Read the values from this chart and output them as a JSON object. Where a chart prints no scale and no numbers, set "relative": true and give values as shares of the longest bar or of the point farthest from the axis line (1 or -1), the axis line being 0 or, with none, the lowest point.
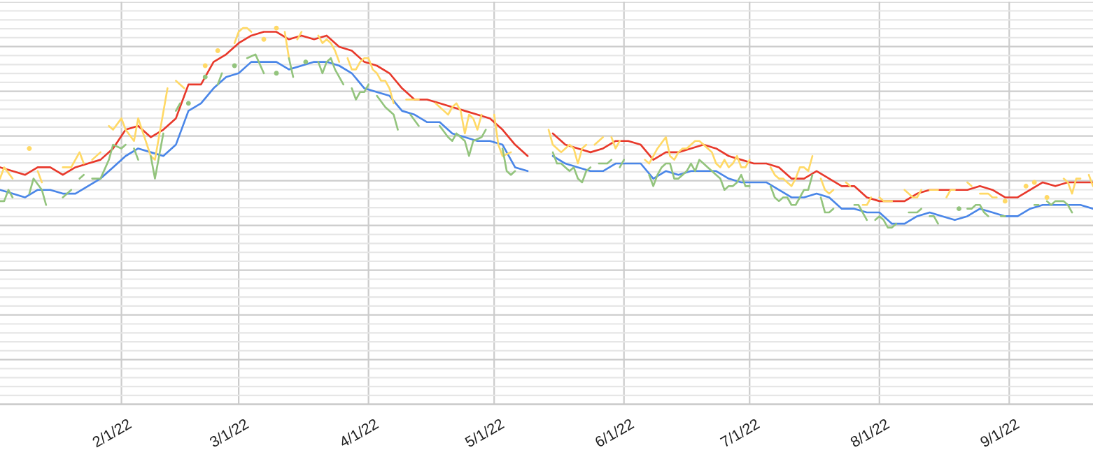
{
  "chart_data": {
    "type": "line",
    "relative": true,
    "grid": true,
    "tick_labels": "x",
    "xlim": [
      "2022-01-03",
      "2022-09-21"
    ],
    "xticks": [
      {
        "value": "2022-02-01",
        "label": "2/1/22"
      },
      {
        "value": "2022-03-01",
        "label": "3/1/22"
      },
      {
        "value": "2022-04-01",
        "label": "4/1/22"
      },
      {
        "value": "2022-05-01",
        "label": "5/1/22"
      },
      {
        "value": "2022-06-01",
        "label": "6/1/22"
      },
      {
        "value": "2022-07-01",
        "label": "7/1/22"
      },
      {
        "value": "2022-08-01",
        "label": "8/1/22"
      },
      {
        "value": "2022-09-01",
        "label": "9/1/22"
      }
    ],
    "x": [
      "2022-01-03",
      "2022-01-06",
      "2022-01-09",
      "2022-01-12",
      "2022-01-15",
      "2022-01-18",
      "2022-01-21",
      "2022-01-24",
      "2022-01-27",
      "2022-01-30",
      "2022-02-02",
      "2022-02-05",
      "2022-02-08",
      "2022-02-11",
      "2022-02-14",
      "2022-02-17",
      "2022-02-20",
      "2022-02-23",
      "2022-02-26",
      "2022-03-01",
      "2022-03-04",
      "2022-03-07",
      "2022-03-10",
      "2022-03-13",
      "2022-03-16",
      "2022-03-19",
      "2022-03-22",
      "2022-03-25",
      "2022-03-28",
      "2022-03-31",
      "2022-04-03",
      "2022-04-06",
      "2022-04-09",
      "2022-04-12",
      "2022-04-15",
      "2022-04-18",
      "2022-04-21",
      "2022-04-24",
      "2022-04-27",
      "2022-04-30",
      "2022-05-03",
      "2022-05-06",
      "2022-05-09",
      "2022-05-12",
      "2022-05-15",
      "2022-05-18",
      "2022-05-21",
      "2022-05-24",
      "2022-05-27",
      "2022-05-30",
      "2022-06-02",
      "2022-06-05",
      "2022-06-08",
      "2022-06-11",
      "2022-06-14",
      "2022-06-17",
      "2022-06-20",
      "2022-06-23",
      "2022-06-26",
      "2022-06-29",
      "2022-07-02",
      "2022-07-05",
      "2022-07-08",
      "2022-07-11",
      "2022-07-14",
      "2022-07-17",
      "2022-07-20",
      "2022-07-23",
      "2022-07-26",
      "2022-07-29",
      "2022-08-01",
      "2022-08-04",
      "2022-08-07",
      "2022-08-10",
      "2022-08-13",
      "2022-08-16",
      "2022-08-19",
      "2022-08-22",
      "2022-08-25",
      "2022-08-28",
      "2022-08-31",
      "2022-09-03",
      "2022-09-06",
      "2022-09-09",
      "2022-09-12",
      "2022-09-15",
      "2022-09-18",
      "2022-09-21"
    ],
    "series": [
      {
        "color": "#e8392b",
        "values": [
          0.63,
          0.62,
          0.61,
          0.63,
          0.63,
          0.61,
          0.63,
          0.64,
          0.65,
          0.68,
          0.73,
          0.74,
          0.71,
          0.73,
          0.76,
          0.85,
          0.85,
          0.91,
          0.93,
          0.96,
          0.98,
          0.99,
          0.99,
          0.97,
          0.98,
          0.97,
          0.98,
          0.95,
          0.94,
          0.91,
          0.9,
          0.88,
          0.84,
          0.81,
          0.81,
          0.8,
          0.79,
          0.78,
          0.77,
          0.76,
          0.73,
          0.69,
          0.66,
          null,
          0.72,
          0.69,
          0.68,
          0.67,
          0.68,
          0.7,
          0.7,
          0.69,
          0.65,
          0.67,
          0.67,
          0.68,
          0.69,
          0.68,
          0.66,
          0.65,
          0.64,
          0.64,
          0.63,
          0.6,
          0.6,
          0.62,
          0.6,
          0.58,
          0.58,
          0.55,
          0.54,
          0.54,
          0.54,
          0.56,
          0.57,
          0.57,
          0.57,
          0.57,
          0.58,
          0.57,
          0.55,
          0.55,
          0.57,
          0.59,
          0.58,
          0.59,
          0.59,
          0.59
        ]
      },
      {
        "color": "#4a86e8",
        "values": [
          0.57,
          0.56,
          0.55,
          0.57,
          0.57,
          0.56,
          0.56,
          0.58,
          0.6,
          0.63,
          0.66,
          0.68,
          0.67,
          0.66,
          0.69,
          0.78,
          0.8,
          0.84,
          0.87,
          0.88,
          0.91,
          0.91,
          0.91,
          0.89,
          0.9,
          0.91,
          0.91,
          0.9,
          0.88,
          0.84,
          0.83,
          0.82,
          0.78,
          0.77,
          0.75,
          0.75,
          0.72,
          0.71,
          0.7,
          0.7,
          0.69,
          0.63,
          0.62,
          null,
          0.66,
          0.64,
          0.63,
          0.62,
          0.62,
          0.64,
          0.64,
          0.64,
          0.6,
          0.62,
          0.61,
          0.62,
          0.62,
          0.62,
          0.6,
          0.59,
          0.59,
          0.59,
          0.57,
          0.55,
          0.55,
          0.56,
          0.55,
          0.52,
          0.52,
          0.51,
          0.51,
          0.48,
          0.48,
          0.5,
          0.51,
          0.5,
          0.49,
          0.5,
          0.52,
          0.51,
          0.5,
          0.5,
          0.52,
          0.53,
          0.53,
          0.53,
          0.53,
          0.52
        ]
      },
      {
        "color": "#ffd966",
        "x": [
          "2022-01-03",
          "2022-01-04",
          "2022-01-06",
          "2022-01-08",
          "2022-01-10",
          "2022-01-11",
          "2022-01-12",
          "2022-01-13",
          "2022-01-15",
          "2022-01-18",
          "2022-01-20",
          "2022-01-22",
          "2022-01-23",
          "2022-01-24",
          "2022-01-25",
          "2022-01-27",
          "2022-01-28",
          "2022-01-29",
          "2022-01-30",
          "2022-02-01",
          "2022-02-02",
          "2022-02-04",
          "2022-02-05",
          "2022-02-08",
          "2022-02-09",
          "2022-02-12",
          "2022-02-13",
          "2022-02-14",
          "2022-02-16",
          "2022-02-18",
          "2022-02-21",
          "2022-02-22",
          "2022-02-24",
          "2022-02-26",
          "2022-02-28",
          "2022-03-01",
          "2022-03-02",
          "2022-03-03",
          "2022-03-04",
          "2022-03-05",
          "2022-03-07",
          "2022-03-08",
          "2022-03-10",
          "2022-03-11",
          "2022-03-12",
          "2022-03-13",
          "2022-03-14",
          "2022-03-15",
          "2022-03-16",
          "2022-03-18",
          "2022-03-20",
          "2022-03-21",
          "2022-03-22",
          "2022-03-23",
          "2022-03-24",
          "2022-03-25",
          "2022-03-26",
          "2022-03-27",
          "2022-03-28",
          "2022-03-29",
          "2022-03-30",
          "2022-03-31",
          "2022-04-01",
          "2022-04-02",
          "2022-04-03",
          "2022-04-04",
          "2022-04-05",
          "2022-04-06",
          "2022-04-07",
          "2022-04-08",
          "2022-04-10",
          "2022-04-12",
          "2022-04-13",
          "2022-04-15",
          "2022-04-17",
          "2022-04-19",
          "2022-04-20",
          "2022-04-21",
          "2022-04-22",
          "2022-04-23",
          "2022-04-24",
          "2022-04-25",
          "2022-04-26",
          "2022-04-27",
          "2022-04-28",
          "2022-04-29",
          "2022-05-01",
          "2022-05-02",
          "2022-05-03",
          "2022-05-05",
          "2022-05-10",
          "2022-05-14",
          "2022-05-15",
          "2022-05-16",
          "2022-05-17",
          "2022-05-18",
          "2022-05-19",
          "2022-05-20",
          "2022-05-21",
          "2022-05-22",
          "2022-05-23",
          "2022-05-24",
          "2022-05-25",
          "2022-05-27",
          "2022-05-28",
          "2022-05-29",
          "2022-05-30",
          "2022-05-31",
          "2022-06-03",
          "2022-06-06",
          "2022-06-07",
          "2022-06-09",
          "2022-06-11",
          "2022-06-12",
          "2022-06-13",
          "2022-06-14",
          "2022-06-15",
          "2022-06-16",
          "2022-06-17",
          "2022-06-18",
          "2022-06-19",
          "2022-06-20",
          "2022-06-21",
          "2022-06-22",
          "2022-06-23",
          "2022-06-24",
          "2022-06-25",
          "2022-06-26",
          "2022-06-27",
          "2022-06-28",
          "2022-06-29",
          "2022-06-30",
          "2022-07-01",
          "2022-07-03",
          "2022-07-06",
          "2022-07-07",
          "2022-07-08",
          "2022-07-09",
          "2022-07-10",
          "2022-07-11",
          "2022-07-12",
          "2022-07-13",
          "2022-07-14",
          "2022-07-15",
          "2022-07-16",
          "2022-07-17",
          "2022-07-18",
          "2022-07-19",
          "2022-07-20",
          "2022-07-21",
          "2022-07-22",
          "2022-07-24",
          "2022-07-25",
          "2022-07-26",
          "2022-07-28",
          "2022-07-29",
          "2022-07-30",
          "2022-07-31",
          "2022-08-01",
          "2022-08-02",
          "2022-08-04",
          "2022-08-06",
          "2022-08-07",
          "2022-08-08",
          "2022-08-09",
          "2022-08-10",
          "2022-08-11",
          "2022-08-12",
          "2022-08-13",
          "2022-08-15",
          "2022-08-16",
          "2022-08-17",
          "2022-08-18",
          "2022-08-19",
          "2022-08-20",
          "2022-08-22",
          "2022-08-23",
          "2022-08-24",
          "2022-08-25",
          "2022-08-27",
          "2022-08-28",
          "2022-08-29",
          "2022-08-30",
          "2022-08-31",
          "2022-09-02",
          "2022-09-05",
          "2022-09-06",
          "2022-09-07",
          "2022-09-08",
          "2022-09-10",
          "2022-09-12",
          "2022-09-14",
          "2022-09-15",
          "2022-09-16",
          "2022-09-17",
          "2022-09-18",
          "2022-09-19",
          "2022-09-20",
          "2022-09-21"
        ],
        "values": [
          0.6,
          0.63,
          0.6,
          null,
          0.68,
          null,
          0.62,
          0.59,
          null,
          0.63,
          0.63,
          0.67,
          0.64,
          null,
          0.65,
          0.67,
          null,
          0.74,
          0.73,
          0.76,
          0.73,
          0.7,
          0.76,
          0.66,
          0.65,
          0.84,
          null,
          0.86,
          0.84,
          null,
          0.9,
          null,
          0.94,
          null,
          0.96,
          0.99,
          1.0,
          1.0,
          0.99,
          null,
          0.97,
          null,
          1.0,
          null,
          0.99,
          0.92,
          null,
          0.97,
          0.99,
          null,
          0.98,
          0.96,
          0.97,
          0.96,
          0.94,
          0.91,
          null,
          0.92,
          0.89,
          0.89,
          0.91,
          0.92,
          0.92,
          0.89,
          0.88,
          0.86,
          0.86,
          0.84,
          0.8,
          null,
          0.81,
          0.81,
          0.81,
          null,
          0.8,
          0.78,
          0.77,
          0.79,
          0.8,
          0.78,
          0.72,
          0.77,
          0.76,
          0.73,
          0.77,
          null,
          0.77,
          0.69,
          0.66,
          0.67,
          null,
          0.73,
          0.69,
          0.68,
          0.67,
          0.68,
          0.69,
          0.68,
          0.64,
          0.68,
          0.69,
          null,
          0.69,
          0.71,
          null,
          0.71,
          0.68,
          0.7,
          null,
          0.65,
          0.64,
          0.68,
          0.71,
          0.66,
          0.65,
          0.67,
          0.68,
          0.68,
          0.69,
          0.7,
          0.7,
          0.69,
          0.68,
          0.67,
          0.64,
          0.63,
          0.65,
          0.63,
          0.64,
          0.66,
          0.63,
          0.63,
          0.65,
          null,
          0.63,
          0.61,
          0.6,
          0.6,
          0.59,
          0.58,
          0.6,
          0.63,
          0.63,
          0.62,
          0.66,
          null,
          0.6,
          0.57,
          0.56,
          0.57,
          null,
          0.59,
          0.58,
          null,
          0.53,
          0.53,
          0.55,
          null,
          0.55,
          0.54,
          0.54,
          null,
          0.57,
          0.56,
          0.55,
          0.55,
          0.57,
          null,
          0.57,
          0.57,
          null,
          0.55,
          0.57,
          0.57,
          null,
          0.59,
          0.58,
          null,
          0.56,
          0.56,
          0.55,
          0.55,
          null,
          0.54,
          null,
          0.58,
          null,
          0.59,
          null,
          0.55,
          null,
          0.6,
          0.59,
          0.56,
          0.6,
          0.6,
          null,
          0.61,
          0.58
        ]
      },
      {
        "color": "#93c47d",
        "x": [
          "2022-01-03",
          "2022-01-04",
          "2022-01-05",
          "2022-01-06",
          "2022-01-08",
          "2022-01-10",
          "2022-01-11",
          "2022-01-13",
          "2022-01-14",
          "2022-01-16",
          "2022-01-18",
          "2022-01-20",
          "2022-01-21",
          "2022-01-22",
          "2022-01-23",
          "2022-01-24",
          "2022-01-25",
          "2022-01-27",
          "2022-01-29",
          "2022-01-30",
          "2022-02-01",
          "2022-02-02",
          "2022-02-03",
          "2022-02-04",
          "2022-02-05",
          "2022-02-06",
          "2022-02-08",
          "2022-02-09",
          "2022-02-11",
          "2022-02-12",
          "2022-02-14",
          "2022-02-15",
          "2022-02-16",
          "2022-02-17",
          "2022-02-19",
          "2022-02-21",
          "2022-02-22",
          "2022-02-24",
          "2022-02-25",
          "2022-02-26",
          "2022-02-28",
          "2022-03-01",
          "2022-03-03",
          "2022-03-05",
          "2022-03-07",
          "2022-03-08",
          "2022-03-10",
          "2022-03-11",
          "2022-03-13",
          "2022-03-14",
          "2022-03-15",
          "2022-03-17",
          "2022-03-18",
          "2022-03-20",
          "2022-03-21",
          "2022-03-22",
          "2022-03-23",
          "2022-03-24",
          "2022-03-26",
          "2022-03-27",
          "2022-03-28",
          "2022-03-29",
          "2022-03-30",
          "2022-03-31",
          "2022-04-01",
          "2022-04-02",
          "2022-04-03",
          "2022-04-05",
          "2022-04-07",
          "2022-04-08",
          "2022-04-09",
          "2022-04-11",
          "2022-04-13",
          "2022-04-15",
          "2022-04-18",
          "2022-04-20",
          "2022-04-21",
          "2022-04-22",
          "2022-04-24",
          "2022-04-25",
          "2022-04-26",
          "2022-04-28",
          "2022-04-29",
          "2022-05-01",
          "2022-05-03",
          "2022-05-04",
          "2022-05-05",
          "2022-05-06",
          "2022-05-10",
          "2022-05-15",
          "2022-05-16",
          "2022-05-17",
          "2022-05-18",
          "2022-05-19",
          "2022-05-20",
          "2022-05-21",
          "2022-05-22",
          "2022-05-23",
          "2022-05-24",
          "2022-05-25",
          "2022-05-26",
          "2022-05-27",
          "2022-05-28",
          "2022-05-29",
          "2022-05-30",
          "2022-05-31",
          "2022-06-01",
          "2022-06-04",
          "2022-06-07",
          "2022-06-08",
          "2022-06-09",
          "2022-06-10",
          "2022-06-11",
          "2022-06-12",
          "2022-06-13",
          "2022-06-14",
          "2022-06-15",
          "2022-06-16",
          "2022-06-17",
          "2022-06-18",
          "2022-06-19",
          "2022-06-20",
          "2022-06-21",
          "2022-06-22",
          "2022-06-23",
          "2022-06-24",
          "2022-06-25",
          "2022-06-26",
          "2022-06-27",
          "2022-06-28",
          "2022-06-29",
          "2022-06-30",
          "2022-07-01",
          "2022-07-03",
          "2022-07-06",
          "2022-07-07",
          "2022-07-08",
          "2022-07-09",
          "2022-07-10",
          "2022-07-11",
          "2022-07-12",
          "2022-07-13",
          "2022-07-14",
          "2022-07-15",
          "2022-07-16",
          "2022-07-17",
          "2022-07-18",
          "2022-07-19",
          "2022-07-20",
          "2022-07-21",
          "2022-07-23",
          "2022-07-26",
          "2022-07-27",
          "2022-07-28",
          "2022-07-29",
          "2022-07-30",
          "2022-07-31",
          "2022-08-01",
          "2022-08-02",
          "2022-08-03",
          "2022-08-04",
          "2022-08-05",
          "2022-08-06",
          "2022-08-08",
          "2022-08-10",
          "2022-08-11",
          "2022-08-12",
          "2022-08-13",
          "2022-08-14",
          "2022-08-15",
          "2022-08-17",
          "2022-08-20",
          "2022-08-21",
          "2022-08-22",
          "2022-08-23",
          "2022-08-24",
          "2022-08-25",
          "2022-08-26",
          "2022-08-27",
          "2022-08-28",
          "2022-08-30",
          "2022-08-31",
          "2022-09-03",
          "2022-09-07",
          "2022-09-08",
          "2022-09-09",
          "2022-09-10",
          "2022-09-11",
          "2022-09-12",
          "2022-09-13",
          "2022-09-14",
          "2022-09-15",
          "2022-09-16"
        ],
        "values": [
          0.54,
          0.54,
          0.57,
          0.55,
          null,
          0.56,
          0.6,
          0.57,
          0.53,
          null,
          0.55,
          0.57,
          null,
          0.6,
          0.61,
          null,
          0.6,
          0.6,
          0.65,
          0.69,
          0.68,
          0.69,
          null,
          0.68,
          0.65,
          null,
          0.66,
          0.6,
          0.72,
          null,
          0.78,
          0.8,
          null,
          0.8,
          null,
          0.87,
          null,
          0.85,
          0.88,
          null,
          0.9,
          null,
          0.92,
          0.93,
          0.88,
          null,
          0.88,
          null,
          0.92,
          0.87,
          null,
          0.91,
          null,
          0.91,
          0.88,
          0.91,
          0.92,
          0.89,
          0.85,
          null,
          0.84,
          0.81,
          0.83,
          0.83,
          0.85,
          null,
          0.82,
          0.79,
          0.77,
          0.73,
          null,
          0.77,
          0.74,
          null,
          0.74,
          0.71,
          0.7,
          0.72,
          0.7,
          0.66,
          0.7,
          0.71,
          0.73,
          null,
          0.68,
          0.62,
          0.61,
          0.62,
          null,
          0.67,
          0.64,
          0.64,
          0.63,
          0.62,
          0.63,
          0.6,
          0.59,
          0.62,
          0.63,
          null,
          0.64,
          0.64,
          0.64,
          0.65,
          null,
          0.63,
          0.65,
          null,
          0.61,
          0.58,
          0.61,
          0.63,
          0.64,
          0.64,
          0.6,
          0.6,
          0.61,
          0.62,
          0.64,
          0.62,
          0.65,
          0.64,
          0.63,
          0.62,
          0.61,
          0.6,
          0.57,
          0.58,
          0.58,
          0.59,
          0.61,
          0.58,
          0.58,
          null,
          0.58,
          0.55,
          0.54,
          0.55,
          0.55,
          0.53,
          0.53,
          0.55,
          0.57,
          0.57,
          0.61,
          null,
          0.55,
          0.51,
          0.51,
          0.52,
          null,
          0.53,
          0.53,
          0.51,
          0.49,
          null,
          0.49,
          0.5,
          0.49,
          0.47,
          0.47,
          0.48,
          null,
          0.51,
          0.51,
          0.52,
          null,
          0.5,
          0.5,
          0.48,
          null,
          0.52,
          null,
          0.52,
          0.52,
          0.53,
          0.53,
          0.51,
          0.5,
          null,
          0.5,
          0.5,
          null,
          0.53,
          0.53,
          null,
          0.54,
          0.53,
          0.54,
          0.54,
          0.54,
          0.53,
          0.51
        ]
      }
    ]
  }
}
